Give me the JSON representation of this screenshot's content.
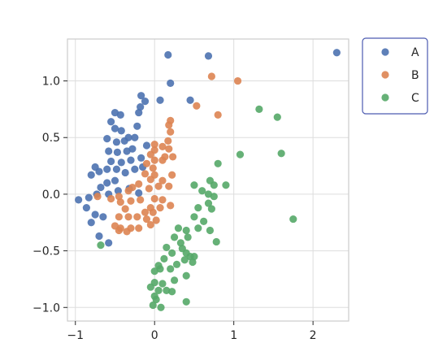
{
  "chart_data": {
    "type": "scatter",
    "title": "",
    "xlabel": "",
    "ylabel": "",
    "xlim": [
      -1.1,
      2.45
    ],
    "ylim": [
      -1.12,
      1.37
    ],
    "xticks": [
      -1,
      0,
      1,
      2
    ],
    "yticks": [
      -1.0,
      -0.5,
      0.0,
      0.5,
      1.0
    ],
    "xtick_labels": [
      "−1",
      "0",
      "1",
      "2"
    ],
    "ytick_labels": [
      "−1.0",
      "−0.5",
      "0.0",
      "0.5",
      "1.0"
    ],
    "grid": true,
    "legend": {
      "placement": "outside-right-top"
    },
    "series": [
      {
        "name": "A",
        "color": "#4c72b0",
        "points": [
          [
            0.17,
            1.23
          ],
          [
            0.68,
            1.22
          ],
          [
            2.3,
            1.25
          ],
          [
            0.2,
            0.98
          ],
          [
            0.45,
            0.83
          ],
          [
            0.07,
            0.83
          ],
          [
            -0.17,
            0.87
          ],
          [
            -0.12,
            0.82
          ],
          [
            -0.18,
            0.77
          ],
          [
            -0.2,
            0.72
          ],
          [
            -0.5,
            0.72
          ],
          [
            -0.43,
            0.7
          ],
          [
            -0.55,
            0.64
          ],
          [
            -0.5,
            0.58
          ],
          [
            -0.42,
            0.56
          ],
          [
            -0.33,
            0.5
          ],
          [
            -0.25,
            0.5
          ],
          [
            -0.22,
            0.6
          ],
          [
            -0.38,
            0.47
          ],
          [
            -0.48,
            0.46
          ],
          [
            -0.6,
            0.49
          ],
          [
            -0.58,
            0.38
          ],
          [
            -0.47,
            0.37
          ],
          [
            -0.35,
            0.38
          ],
          [
            -0.1,
            0.43
          ],
          [
            -0.17,
            0.32
          ],
          [
            -0.28,
            0.4
          ],
          [
            -0.3,
            0.3
          ],
          [
            -0.42,
            0.28
          ],
          [
            -0.55,
            0.29
          ],
          [
            -0.6,
            0.22
          ],
          [
            -0.7,
            0.2
          ],
          [
            -0.75,
            0.24
          ],
          [
            -0.8,
            0.17
          ],
          [
            -0.48,
            0.22
          ],
          [
            -0.37,
            0.19
          ],
          [
            -0.25,
            0.22
          ],
          [
            -0.15,
            0.24
          ],
          [
            -0.5,
            0.12
          ],
          [
            -0.6,
            0.1
          ],
          [
            -0.68,
            0.06
          ],
          [
            -0.73,
            0.0
          ],
          [
            -0.58,
            0.0
          ],
          [
            -0.46,
            0.03
          ],
          [
            -0.32,
            0.05
          ],
          [
            -0.2,
            0.01
          ],
          [
            -0.83,
            -0.03
          ],
          [
            -0.96,
            -0.05
          ],
          [
            -0.86,
            -0.12
          ],
          [
            -0.75,
            -0.18
          ],
          [
            -0.65,
            -0.2
          ],
          [
            -0.8,
            -0.25
          ],
          [
            -0.7,
            -0.37
          ],
          [
            -0.58,
            -0.43
          ]
        ]
      },
      {
        "name": "B",
        "color": "#dd8452",
        "points": [
          [
            1.05,
            1.0
          ],
          [
            0.72,
            1.04
          ],
          [
            0.8,
            0.7
          ],
          [
            0.53,
            0.78
          ],
          [
            0.2,
            0.65
          ],
          [
            0.18,
            0.61
          ],
          [
            0.2,
            0.55
          ],
          [
            0.17,
            0.47
          ],
          [
            0.0,
            0.44
          ],
          [
            0.1,
            0.42
          ],
          [
            0.18,
            0.4
          ],
          [
            0.0,
            0.39
          ],
          [
            -0.05,
            0.35
          ],
          [
            0.13,
            0.33
          ],
          [
            0.23,
            0.33
          ],
          [
            0.1,
            0.3
          ],
          [
            0.0,
            0.3
          ],
          [
            -0.1,
            0.27
          ],
          [
            -0.02,
            0.23
          ],
          [
            -0.12,
            0.18
          ],
          [
            0.0,
            0.17
          ],
          [
            0.1,
            0.12
          ],
          [
            -0.05,
            0.13
          ],
          [
            0.22,
            0.17
          ],
          [
            0.05,
            0.07
          ],
          [
            0.18,
            0.07
          ],
          [
            -0.07,
            0.05
          ],
          [
            -0.2,
            0.09
          ],
          [
            -0.28,
            0.06
          ],
          [
            -0.33,
            0.03
          ],
          [
            -0.45,
            -0.02
          ],
          [
            -0.55,
            -0.04
          ],
          [
            -0.43,
            -0.07
          ],
          [
            -0.3,
            -0.06
          ],
          [
            -0.18,
            -0.05
          ],
          [
            0.0,
            -0.04
          ],
          [
            0.1,
            -0.05
          ],
          [
            -0.05,
            -0.12
          ],
          [
            0.07,
            -0.12
          ],
          [
            0.2,
            -0.1
          ],
          [
            -0.12,
            -0.16
          ],
          [
            -0.02,
            -0.16
          ],
          [
            -0.37,
            -0.13
          ],
          [
            -0.45,
            -0.2
          ],
          [
            -0.33,
            -0.2
          ],
          [
            -0.22,
            -0.2
          ],
          [
            -0.1,
            -0.22
          ],
          [
            0.02,
            -0.23
          ],
          [
            -0.5,
            -0.28
          ],
          [
            -0.43,
            -0.3
          ],
          [
            -0.3,
            -0.3
          ],
          [
            -0.2,
            -0.3
          ],
          [
            -0.05,
            -0.27
          ],
          [
            -0.45,
            -0.32
          ],
          [
            -0.35,
            -0.33
          ],
          [
            -0.72,
            -0.02
          ]
        ]
      },
      {
        "name": "C",
        "color": "#55a868",
        "points": [
          [
            1.32,
            0.75
          ],
          [
            1.55,
            0.68
          ],
          [
            1.6,
            0.36
          ],
          [
            1.08,
            0.35
          ],
          [
            0.8,
            0.27
          ],
          [
            0.7,
            0.12
          ],
          [
            0.75,
            0.08
          ],
          [
            0.9,
            0.08
          ],
          [
            0.5,
            0.08
          ],
          [
            0.6,
            0.03
          ],
          [
            0.68,
            0.0
          ],
          [
            0.75,
            -0.02
          ],
          [
            0.68,
            -0.08
          ],
          [
            0.55,
            -0.12
          ],
          [
            0.72,
            -0.13
          ],
          [
            1.75,
            -0.22
          ],
          [
            0.5,
            -0.2
          ],
          [
            0.62,
            -0.24
          ],
          [
            0.3,
            -0.3
          ],
          [
            0.4,
            -0.32
          ],
          [
            0.55,
            -0.3
          ],
          [
            0.7,
            -0.32
          ],
          [
            0.42,
            -0.38
          ],
          [
            0.25,
            -0.38
          ],
          [
            0.33,
            -0.43
          ],
          [
            0.78,
            -0.42
          ],
          [
            0.15,
            -0.47
          ],
          [
            0.22,
            -0.52
          ],
          [
            0.35,
            -0.48
          ],
          [
            0.45,
            -0.55
          ],
          [
            0.4,
            -0.52
          ],
          [
            0.12,
            -0.57
          ],
          [
            0.28,
            -0.62
          ],
          [
            0.38,
            -0.58
          ],
          [
            0.48,
            -0.6
          ],
          [
            0.5,
            -0.55
          ],
          [
            0.05,
            -0.63
          ],
          [
            0.2,
            -0.66
          ],
          [
            0.0,
            -0.68
          ],
          [
            0.4,
            -0.72
          ],
          [
            0.25,
            -0.76
          ],
          [
            0.1,
            -0.79
          ],
          [
            0.0,
            -0.78
          ],
          [
            -0.05,
            -0.82
          ],
          [
            0.05,
            -0.85
          ],
          [
            0.15,
            -0.85
          ],
          [
            0.22,
            -0.86
          ],
          [
            0.0,
            -0.9
          ],
          [
            0.02,
            -0.93
          ],
          [
            -0.02,
            -0.98
          ],
          [
            0.08,
            -1.0
          ],
          [
            0.4,
            -0.95
          ],
          [
            -0.68,
            -0.45
          ],
          [
            0.07,
            -0.66
          ]
        ]
      }
    ]
  }
}
